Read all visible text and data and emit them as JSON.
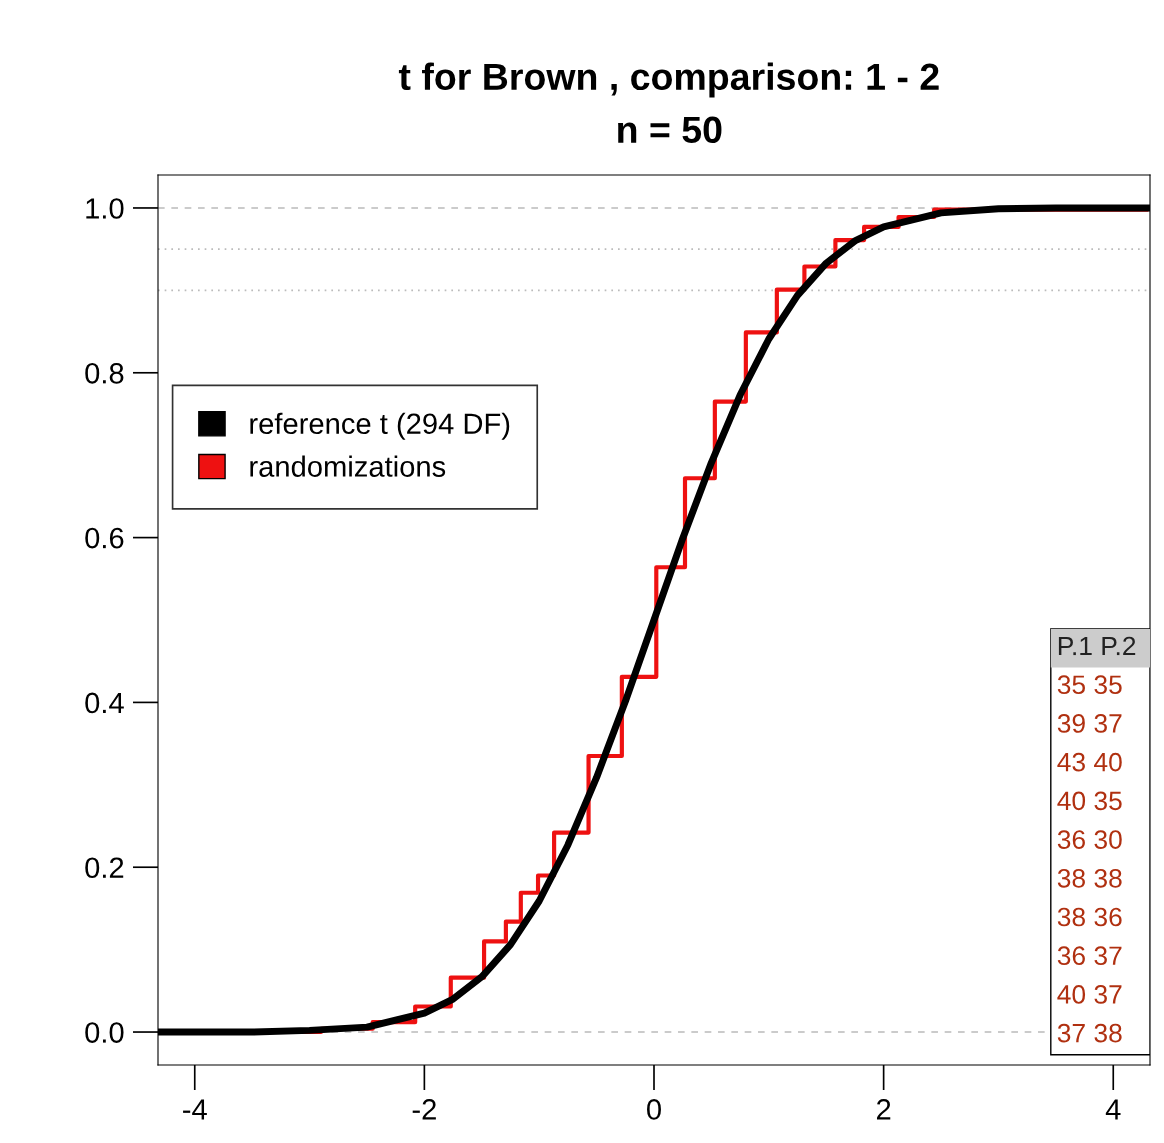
{
  "chart_data": {
    "type": "line",
    "title": "t for Brown , comparison: 1 - 2",
    "subtitle": "n = 50",
    "xlim": [
      -4.32,
      4.32
    ],
    "ylim": [
      -0.04,
      1.04
    ],
    "xticks": [
      {
        "value": -4,
        "label": "-4"
      },
      {
        "value": -2,
        "label": "-2"
      },
      0,
      2,
      4
    ],
    "yticks": [
      {
        "value": 0,
        "label": "0.0"
      },
      {
        "value": 0.2,
        "label": "0.2"
      },
      {
        "value": 0.4,
        "label": "0.4"
      },
      {
        "value": 0.6,
        "label": "0.6"
      },
      {
        "value": 0.8,
        "label": "0.8"
      },
      {
        "value": 1,
        "label": "1.0"
      }
    ],
    "series": [
      {
        "name": "randomizations",
        "type": "step",
        "color": "#ee1111",
        "x": [
          -4.3,
          -2.9,
          -2.45,
          -2.08,
          -1.77,
          -1.48,
          -1.29,
          -1.16,
          -1.01,
          -0.87,
          -0.57,
          -0.28,
          0.02,
          0.27,
          0.53,
          0.8,
          1.07,
          1.31,
          1.58,
          1.83,
          2.13,
          2.44,
          4.3
        ],
        "values": [
          0,
          0.004,
          0.012,
          0.031,
          0.066,
          0.11,
          0.134,
          0.169,
          0.19,
          0.242,
          0.335,
          0.431,
          0.564,
          0.672,
          0.765,
          0.849,
          0.901,
          0.929,
          0.961,
          0.977,
          0.989,
          0.998,
          1.0
        ]
      },
      {
        "name": "reference t (294 DF)",
        "color": "#000000",
        "x": [
          -4.3,
          -3.5,
          -3,
          -2.5,
          -2,
          -1.75,
          -1.5,
          -1.25,
          -1,
          -0.75,
          -0.5,
          -0.25,
          0,
          0.25,
          0.5,
          0.75,
          1,
          1.25,
          1.5,
          1.75,
          2,
          2.5,
          3,
          3.5,
          4.3
        ],
        "values": [
          0,
          0.0,
          0.002,
          0.006,
          0.023,
          0.04,
          0.067,
          0.106,
          0.159,
          0.227,
          0.309,
          0.401,
          0.5,
          0.599,
          0.691,
          0.773,
          0.841,
          0.894,
          0.933,
          0.96,
          0.977,
          0.994,
          0.999,
          1.0,
          1.0
        ]
      }
    ],
    "ref_lines": [
      {
        "axis": "y",
        "value": 0,
        "line_style": "dashed",
        "color": "#bbbbbb"
      },
      {
        "axis": "y",
        "value": 1,
        "line_style": "dashed",
        "color": "#bbbbbb"
      },
      {
        "axis": "y",
        "value": 0.95,
        "line_style": "dotted",
        "color": "#bbbbbb"
      },
      {
        "axis": "y",
        "value": 0.9,
        "line_style": "dotted",
        "color": "#bbbbbb"
      }
    ],
    "annotations": [
      "P.1 P.2",
      "35 35",
      "39 37",
      "43 40",
      "40 35",
      "36 30",
      "38 38",
      "38 36",
      "36 37",
      "40 37",
      "37 38"
    ],
    "legend": "top left",
    "grid": false
  }
}
